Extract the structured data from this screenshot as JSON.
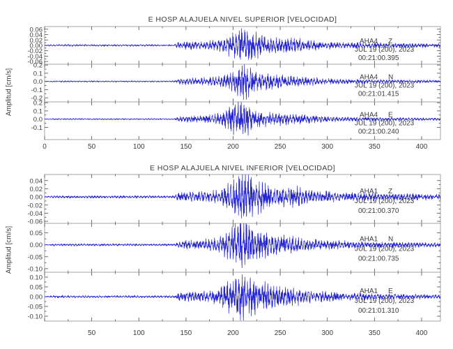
{
  "app": {
    "background": "#ffffff"
  },
  "colors": {
    "waveform": "#2323d2",
    "frame": "#a3a3a3",
    "tick": "#4a4a4a",
    "text": "#3c3c3c"
  },
  "chart_data": [
    {
      "type": "line",
      "title": "E HOSP ALAJUELA NIVEL SUPERIOR [VELOCIDAD]",
      "ylabel": "Amplitud [cm/s]",
      "xlim": [
        0,
        420
      ],
      "xticks": [
        0,
        50,
        100,
        150,
        200,
        250,
        300,
        350,
        400
      ],
      "grid": false,
      "series": [
        {
          "station": "AHA4",
          "channel": "Z",
          "date": "JUL 19 (200), 2023",
          "time": "00:21:00.395",
          "ylim": [
            -0.07,
            0.07
          ],
          "ytick_vals": [
            0.06,
            0.04,
            0.02,
            0.0,
            -0.02,
            -0.04,
            -0.06
          ],
          "ytick_labels": [
            "0.06",
            "0.04",
            "0.02",
            "0.00",
            "-0.02",
            "-0.04",
            "-0.06"
          ],
          "seed": 7,
          "envelope": [
            [
              0,
              0.0015
            ],
            [
              10,
              0.003
            ],
            [
              90,
              0.003
            ],
            [
              138,
              0.0028
            ],
            [
              143,
              0.011
            ],
            [
              152,
              0.013
            ],
            [
              168,
              0.012
            ],
            [
              182,
              0.015
            ],
            [
              192,
              0.026
            ],
            [
              200,
              0.04
            ],
            [
              208,
              0.05
            ],
            [
              215,
              0.052
            ],
            [
              222,
              0.044
            ],
            [
              230,
              0.034
            ],
            [
              240,
              0.028
            ],
            [
              252,
              0.024
            ],
            [
              262,
              0.027
            ],
            [
              275,
              0.018
            ],
            [
              292,
              0.013
            ],
            [
              315,
              0.01
            ],
            [
              345,
              0.008
            ],
            [
              385,
              0.007
            ],
            [
              420,
              0.006
            ]
          ]
        },
        {
          "station": "AHA4",
          "channel": "N",
          "date": "JUL 19 (200), 2023",
          "time": "00:21:01.415",
          "ylim": [
            -0.25,
            0.21
          ],
          "ytick_vals": [
            0.2,
            0.1,
            0.0,
            -0.1,
            -0.2
          ],
          "ytick_labels": [
            "0.2",
            "0.1",
            "0.0",
            "-0.1",
            "-0.2"
          ],
          "seed": 13,
          "envelope": [
            [
              0,
              0.002
            ],
            [
              10,
              0.007
            ],
            [
              90,
              0.0075
            ],
            [
              138,
              0.007
            ],
            [
              143,
              0.028
            ],
            [
              155,
              0.032
            ],
            [
              170,
              0.036
            ],
            [
              183,
              0.045
            ],
            [
              193,
              0.07
            ],
            [
              201,
              0.12
            ],
            [
              208,
              0.17
            ],
            [
              214,
              0.185
            ],
            [
              221,
              0.15
            ],
            [
              229,
              0.1
            ],
            [
              238,
              0.08
            ],
            [
              250,
              0.065
            ],
            [
              262,
              0.055
            ],
            [
              275,
              0.045
            ],
            [
              290,
              0.035
            ],
            [
              310,
              0.027
            ],
            [
              335,
              0.021
            ],
            [
              370,
              0.017
            ],
            [
              420,
              0.014
            ]
          ]
        },
        {
          "station": "AHA4",
          "channel": "E",
          "date": "JUL 19 (200), 2023",
          "time": "00:21:00.240",
          "ylim": [
            -0.25,
            0.21
          ],
          "ytick_vals": [
            0.2,
            0.1,
            0.0,
            -0.1
          ],
          "ytick_labels": [
            "0.2",
            "0.1",
            "0.0",
            "-0.1"
          ],
          "seed": 21,
          "envelope": [
            [
              0,
              0.002
            ],
            [
              10,
              0.007
            ],
            [
              90,
              0.0075
            ],
            [
              138,
              0.007
            ],
            [
              143,
              0.03
            ],
            [
              155,
              0.034
            ],
            [
              168,
              0.04
            ],
            [
              180,
              0.05
            ],
            [
              190,
              0.08
            ],
            [
              198,
              0.13
            ],
            [
              205,
              0.19
            ],
            [
              212,
              0.17
            ],
            [
              220,
              0.12
            ],
            [
              228,
              0.09
            ],
            [
              240,
              0.07
            ],
            [
              252,
              0.06
            ],
            [
              265,
              0.05
            ],
            [
              280,
              0.04
            ],
            [
              295,
              0.03
            ],
            [
              315,
              0.024
            ],
            [
              340,
              0.019
            ],
            [
              375,
              0.015
            ],
            [
              420,
              0.013
            ]
          ]
        }
      ]
    },
    {
      "type": "line",
      "title": "E HOSP ALAJUELA NIVEL INFERIOR [VELOCIDAD]",
      "ylabel": "Amplitud [cm/s]",
      "xlim": [
        0,
        420
      ],
      "xticks": [
        50,
        100,
        150,
        200,
        250,
        300,
        350,
        400
      ],
      "grid": false,
      "series": [
        {
          "station": "AHA1",
          "channel": "Z",
          "date": "JUL 19 (200), 2023",
          "time": "00:21:00.370",
          "ylim": [
            -0.065,
            0.055
          ],
          "ytick_vals": [
            0.04,
            0.02,
            0.0,
            -0.02,
            -0.04,
            -0.06
          ],
          "ytick_labels": [
            "0.04",
            "0.02",
            "0.00",
            "-0.02",
            "-0.04",
            "-0.06"
          ],
          "seed": 31,
          "envelope": [
            [
              0,
              0.001
            ],
            [
              10,
              0.0025
            ],
            [
              90,
              0.0027
            ],
            [
              138,
              0.0025
            ],
            [
              143,
              0.009
            ],
            [
              155,
              0.011
            ],
            [
              170,
              0.011
            ],
            [
              182,
              0.013
            ],
            [
              192,
              0.022
            ],
            [
              200,
              0.038
            ],
            [
              207,
              0.05
            ],
            [
              214,
              0.048
            ],
            [
              222,
              0.038
            ],
            [
              230,
              0.03
            ],
            [
              240,
              0.024
            ],
            [
              252,
              0.02
            ],
            [
              265,
              0.022
            ],
            [
              278,
              0.016
            ],
            [
              295,
              0.012
            ],
            [
              318,
              0.009
            ],
            [
              348,
              0.0075
            ],
            [
              385,
              0.0065
            ],
            [
              420,
              0.006
            ]
          ]
        },
        {
          "station": "AHA1",
          "channel": "N",
          "date": "JUL 19 (200), 2023",
          "time": "00:21:00.735",
          "ylim": [
            -0.115,
            0.09
          ],
          "ytick_vals": [
            0.05,
            0.0,
            -0.05,
            -0.1
          ],
          "ytick_labels": [
            "0.05",
            "0.00",
            "-0.05",
            "-0.10"
          ],
          "seed": 41,
          "envelope": [
            [
              0,
              0.0012
            ],
            [
              10,
              0.004
            ],
            [
              90,
              0.004
            ],
            [
              138,
              0.0038
            ],
            [
              143,
              0.014
            ],
            [
              155,
              0.016
            ],
            [
              170,
              0.018
            ],
            [
              182,
              0.022
            ],
            [
              192,
              0.04
            ],
            [
              200,
              0.065
            ],
            [
              207,
              0.082
            ],
            [
              214,
              0.08
            ],
            [
              222,
              0.062
            ],
            [
              230,
              0.05
            ],
            [
              240,
              0.04
            ],
            [
              252,
              0.034
            ],
            [
              265,
              0.028
            ],
            [
              280,
              0.022
            ],
            [
              295,
              0.017
            ],
            [
              318,
              0.013
            ],
            [
              348,
              0.011
            ],
            [
              385,
              0.009
            ],
            [
              420,
              0.008
            ]
          ]
        },
        {
          "station": "AHA1",
          "channel": "E",
          "date": "JUL 19 (200), 2023",
          "time": "00:21:01.310",
          "ylim": [
            -0.125,
            0.125
          ],
          "ytick_vals": [
            0.1,
            0.05,
            0.0,
            -0.05,
            -0.1
          ],
          "ytick_labels": [
            "0.10",
            "0.05",
            "0.00",
            "-0.05",
            "-0.10"
          ],
          "seed": 51,
          "envelope": [
            [
              0,
              0.0015
            ],
            [
              10,
              0.005
            ],
            [
              90,
              0.005
            ],
            [
              138,
              0.0048
            ],
            [
              143,
              0.018
            ],
            [
              155,
              0.02
            ],
            [
              170,
              0.022
            ],
            [
              182,
              0.028
            ],
            [
              192,
              0.05
            ],
            [
              200,
              0.085
            ],
            [
              207,
              0.115
            ],
            [
              214,
              0.105
            ],
            [
              222,
              0.08
            ],
            [
              230,
              0.062
            ],
            [
              240,
              0.05
            ],
            [
              252,
              0.042
            ],
            [
              265,
              0.035
            ],
            [
              280,
              0.028
            ],
            [
              295,
              0.022
            ],
            [
              318,
              0.017
            ],
            [
              348,
              0.013
            ],
            [
              385,
              0.011
            ],
            [
              420,
              0.009
            ]
          ]
        }
      ]
    }
  ]
}
